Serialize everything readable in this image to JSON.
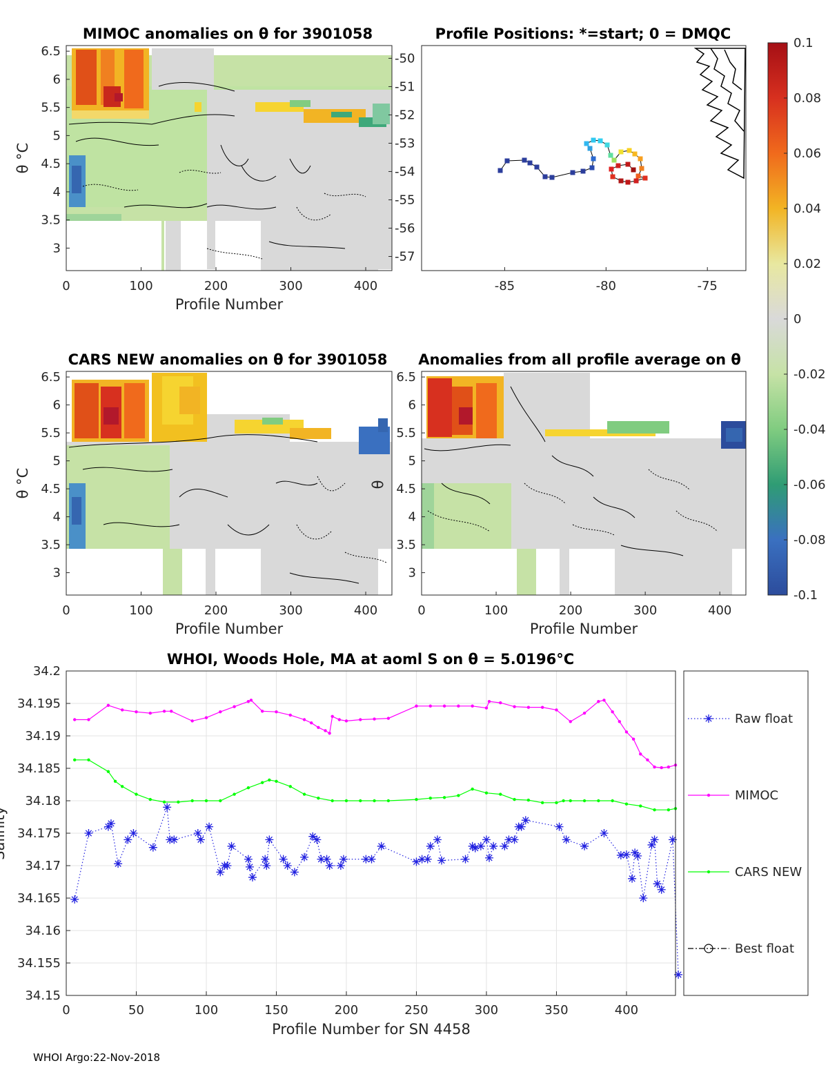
{
  "panels": {
    "mimoc": {
      "title": "MIMOC anomalies on θ  for 3901058",
      "xlabel": "Profile Number",
      "ylabel": "θ °C",
      "xticks": [
        "0",
        "100",
        "200",
        "300",
        "400"
      ],
      "yticks": [
        "6.5",
        "6",
        "5.5",
        "5",
        "4.5",
        "4",
        "3.5",
        "3"
      ]
    },
    "positions": {
      "title": "Profile Positions: *=start; 0 = DMQC",
      "xticks": [
        "-85",
        "-80",
        "-75"
      ],
      "yticks": [
        "-50",
        "-51",
        "-52",
        "-53",
        "-54",
        "-55",
        "-56",
        "-57"
      ]
    },
    "cars": {
      "title": "CARS NEW anomalies on θ for 3901058",
      "xlabel": "Profile Number",
      "ylabel": "θ °C",
      "xticks": [
        "0",
        "100",
        "200",
        "300",
        "400"
      ],
      "yticks": [
        "6.5",
        "6",
        "5.5",
        "5",
        "4.5",
        "4",
        "3.5",
        "3"
      ]
    },
    "allavg": {
      "title": "Anomalies from all profile average on θ",
      "xlabel": "Profile Number",
      "ylabel": "θ",
      "xticks": [
        "0",
        "100",
        "200",
        "300",
        "400"
      ],
      "yticks": [
        "6.5",
        "6",
        "5.5",
        "5",
        "4.5",
        "4",
        "3.5",
        "3"
      ]
    }
  },
  "colorbar": {
    "ticks": [
      "0.1",
      "0.08",
      "0.06",
      "0.04",
      "0.02",
      "0",
      "-0.02",
      "-0.04",
      "-0.06",
      "-0.08",
      "-0.1"
    ],
    "colors": [
      "#b2182b",
      "#e03020",
      "#f07818",
      "#f2c020",
      "#e8e8a0",
      "#d8d8d8",
      "#c8e8a8",
      "#80cc80",
      "#30a870",
      "#3878c0",
      "#2c4c9c"
    ]
  },
  "chart_data": {
    "type": "line",
    "title": "WHOI, Woods Hole, MA at aoml S on θ = 5.0196°C",
    "xlabel": "Profile Number for SN 4458",
    "ylabel": "Salinity",
    "xlim": [
      0,
      435
    ],
    "ylim": [
      34.15,
      34.2
    ],
    "xticks": [
      0,
      50,
      100,
      150,
      200,
      250,
      300,
      350,
      400
    ],
    "yticks": [
      34.15,
      34.155,
      34.16,
      34.165,
      34.17,
      34.175,
      34.18,
      34.185,
      34.19,
      34.195,
      34.2
    ],
    "grid": true,
    "legend_position": "right",
    "series": [
      {
        "name": "Raw float",
        "color": "#2020e0",
        "style": "dotted",
        "marker": "asterisk",
        "x": [
          6,
          16,
          30,
          32,
          37,
          44,
          48,
          62,
          72,
          74,
          77,
          94,
          96,
          102,
          110,
          113,
          115,
          118,
          130,
          131,
          133,
          142,
          143,
          145,
          155,
          158,
          163,
          170,
          176,
          179,
          182,
          186,
          188,
          196,
          198,
          214,
          218,
          225,
          250,
          254,
          258,
          260,
          265,
          268,
          285,
          290,
          292,
          296,
          300,
          302,
          305,
          313,
          316,
          320,
          323,
          325,
          328,
          352,
          357,
          370,
          384,
          396,
          400,
          404,
          406,
          408,
          412,
          418,
          420,
          422,
          425,
          433,
          437
        ],
        "y": [
          34.1648,
          34.175,
          34.176,
          34.1765,
          34.1703,
          34.174,
          34.175,
          34.1728,
          34.179,
          34.174,
          34.174,
          34.175,
          34.174,
          34.176,
          34.169,
          34.17,
          34.17,
          34.173,
          34.171,
          34.1698,
          34.1682,
          34.171,
          34.17,
          34.174,
          34.171,
          34.17,
          34.169,
          34.1713,
          34.1745,
          34.174,
          34.171,
          34.171,
          34.17,
          34.17,
          34.171,
          34.171,
          34.171,
          34.173,
          34.1706,
          34.171,
          34.171,
          34.173,
          34.174,
          34.1708,
          34.171,
          34.173,
          34.1727,
          34.173,
          34.174,
          34.1712,
          34.173,
          34.173,
          34.174,
          34.174,
          34.176,
          34.176,
          34.177,
          34.176,
          34.174,
          34.173,
          34.175,
          34.1716,
          34.1717,
          34.168,
          34.172,
          34.1715,
          34.165,
          34.1732,
          34.174,
          34.1672,
          34.1663,
          34.174,
          34.1532
        ]
      },
      {
        "name": "MIMOC",
        "color": "#ff00ff",
        "style": "solid",
        "marker": "dot",
        "x": [
          6,
          16,
          30,
          40,
          50,
          60,
          70,
          75,
          90,
          100,
          110,
          120,
          130,
          132,
          140,
          150,
          160,
          170,
          175,
          180,
          185,
          188,
          190,
          195,
          200,
          210,
          220,
          230,
          250,
          260,
          270,
          280,
          290,
          300,
          302,
          310,
          320,
          330,
          340,
          350,
          360,
          370,
          380,
          384,
          390,
          395,
          400,
          405,
          410,
          415,
          420,
          425,
          430,
          435
        ],
        "y": [
          34.1925,
          34.1925,
          34.1947,
          34.194,
          34.1937,
          34.1935,
          34.1938,
          34.1938,
          34.1923,
          34.1928,
          34.1937,
          34.1945,
          34.1953,
          34.1955,
          34.1938,
          34.1937,
          34.1932,
          34.1925,
          34.192,
          34.1913,
          34.1908,
          34.1904,
          34.193,
          34.1925,
          34.1923,
          34.1925,
          34.1926,
          34.1927,
          34.1946,
          34.1946,
          34.1946,
          34.1946,
          34.1946,
          34.1943,
          34.1953,
          34.1951,
          34.1945,
          34.1944,
          34.1944,
          34.194,
          34.1922,
          34.1935,
          34.1953,
          34.1955,
          34.1937,
          34.1922,
          34.1906,
          34.1895,
          34.1872,
          34.1863,
          34.1852,
          34.1851,
          34.1852,
          34.1855
        ]
      },
      {
        "name": "CARS NEW",
        "color": "#00ff00",
        "style": "solid",
        "marker": "dot",
        "x": [
          6,
          16,
          30,
          35,
          40,
          50,
          60,
          70,
          80,
          90,
          100,
          110,
          120,
          130,
          140,
          145,
          150,
          160,
          170,
          180,
          190,
          200,
          210,
          220,
          230,
          250,
          260,
          270,
          280,
          290,
          300,
          310,
          320,
          330,
          340,
          350,
          355,
          360,
          370,
          380,
          390,
          400,
          410,
          420,
          430,
          435
        ],
        "y": [
          34.1863,
          34.1863,
          34.1845,
          34.183,
          34.1822,
          34.181,
          34.1802,
          34.1798,
          34.1798,
          34.18,
          34.18,
          34.18,
          34.181,
          34.182,
          34.1828,
          34.1832,
          34.183,
          34.1822,
          34.181,
          34.1804,
          34.18,
          34.18,
          34.18,
          34.18,
          34.18,
          34.1802,
          34.1804,
          34.1805,
          34.1808,
          34.1818,
          34.1812,
          34.181,
          34.1802,
          34.1801,
          34.1797,
          34.1797,
          34.18,
          34.18,
          34.18,
          34.18,
          34.18,
          34.1795,
          34.1792,
          34.1786,
          34.1786,
          34.1788
        ]
      },
      {
        "name": "Best float",
        "color": "#000000",
        "style": "dashdot",
        "marker": "circle",
        "x": [],
        "y": []
      }
    ]
  },
  "footer": "WHOI Argo:22-Nov-2018"
}
